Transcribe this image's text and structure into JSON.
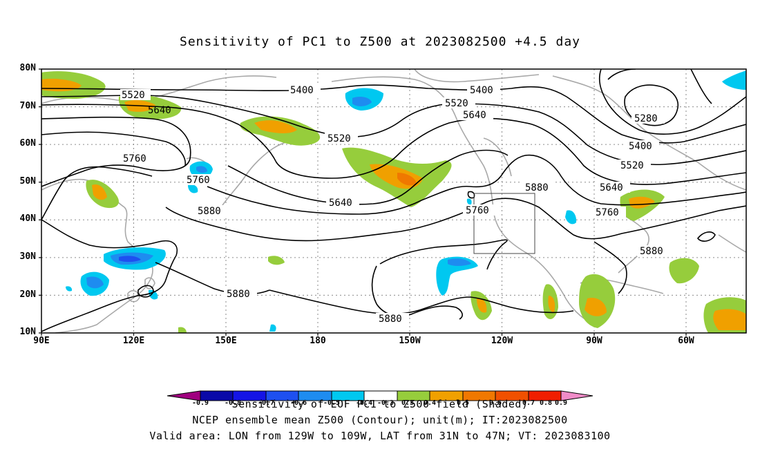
{
  "title": "Sensitivity of PC1 to Z500 at 2023082500 +4.5 day",
  "axes": {
    "lat_labels": [
      "80N",
      "70N",
      "60N",
      "50N",
      "40N",
      "30N",
      "20N",
      "10N"
    ],
    "lon_labels": [
      "90E",
      "120E",
      "150E",
      "180",
      "150W",
      "120W",
      "90W",
      "60W"
    ]
  },
  "contours": {
    "levels": [
      "5280",
      "5400",
      "5520",
      "5640",
      "5760",
      "5880"
    ],
    "labels": [
      {
        "text": "5520"
      },
      {
        "text": "5640"
      },
      {
        "text": "5400"
      },
      {
        "text": "5400"
      },
      {
        "text": "5520"
      },
      {
        "text": "5640"
      },
      {
        "text": "5520"
      },
      {
        "text": "5760"
      },
      {
        "text": "5760"
      },
      {
        "text": "5880"
      },
      {
        "text": "5640"
      },
      {
        "text": "5760"
      },
      {
        "text": "5880"
      },
      {
        "text": "5280"
      },
      {
        "text": "5400"
      },
      {
        "text": "5520"
      },
      {
        "text": "5640"
      },
      {
        "text": "5760"
      },
      {
        "text": "5880"
      },
      {
        "text": "5880"
      },
      {
        "text": "5880"
      }
    ]
  },
  "valid_box": {
    "lon_range": "129W to 109W",
    "lat_range": "31N to 47N"
  },
  "colorbar": {
    "colors": [
      "#a0007f",
      "#0a0aa8",
      "#1414e6",
      "#1e50f0",
      "#1e8cf0",
      "#00c8f0",
      "#ffffff",
      "#96cd3c",
      "#f0a000",
      "#f07800",
      "#f05000",
      "#f01e00",
      "#e60000",
      "#f08cc8"
    ],
    "tick_labels": [
      "-0.9",
      "-0.8",
      "-0.7",
      "-0.6",
      "-0.5",
      "-0.4",
      "-0.3",
      "0.3",
      "0.4",
      "0.5",
      "0.6",
      "0.7",
      "0.8",
      "0.9"
    ]
  },
  "captions": {
    "line1": "Sensitivity of EOF PC1 to Z500 field (Shaded)",
    "line2": "NCEP ensemble mean Z500 (Contour); unit(m); IT:2023082500",
    "line3": "Valid area: LON from 129W to 109W, LAT from 31N to 47N; VT: 2023083100"
  }
}
